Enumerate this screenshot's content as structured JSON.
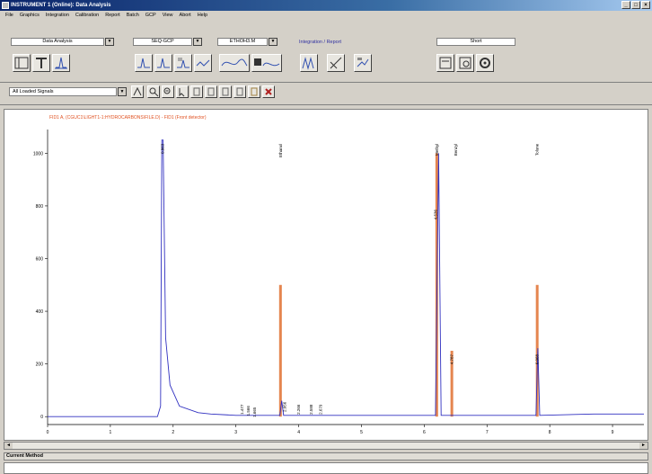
{
  "window": {
    "title": "INSTRUMENT 1 (Online): Data Analysis",
    "controls": [
      "_",
      "□",
      "×"
    ]
  },
  "menu": [
    "File",
    "Graphics",
    "Integration",
    "Calibration",
    "Report",
    "Batch",
    "GCP",
    "View",
    "Abort",
    "Help"
  ],
  "toolbar": {
    "view_select": "Data Analysis",
    "sequence_select": "SEQ-GCP",
    "method_select": "ETHOH3.M",
    "task_label": "Integration / Report",
    "print_select": "Short",
    "signal_select": "All Loaded Signals"
  },
  "chromatogram": {
    "header": "FID1 A, (CGUC1\\LIGHT1-1:HYDROCARBONS\\FILE.D) - FID1 (Front detector)",
    "peak_labels": [
      "0.863",
      "1.477",
      "1.566",
      "1.665",
      "2.056",
      "2.266",
      "2.588",
      "2.679",
      "4.536",
      "4.787",
      "6.068",
      "Ethanol",
      "Methyl",
      "Benzyl",
      "Tolune"
    ]
  },
  "chart_data": {
    "type": "line",
    "xlabel": "",
    "ylabel": "",
    "xlim": [
      0,
      9.5
    ],
    "ylim": [
      -30,
      1090
    ],
    "x_ticks": [
      0,
      1,
      2,
      3,
      4,
      5,
      6,
      7,
      8,
      9
    ],
    "y_ticks": [
      0,
      200,
      400,
      600,
      800,
      1000
    ],
    "y_tick_labels": [
      "0",
      "200",
      "400",
      "600",
      "800",
      "1000"
    ],
    "series": [
      {
        "name": "FID1",
        "color": "#3030c0",
        "x": [
          0,
          1.75,
          1.8,
          1.82,
          1.84,
          1.88,
          1.95,
          2.1,
          2.4,
          2.6,
          3.0,
          3.5,
          3.7,
          3.73,
          3.76,
          4.2,
          6.0,
          6.18,
          6.23,
          6.27,
          6.35,
          6.44,
          6.46,
          6.5,
          7.5,
          7.78,
          7.81,
          7.84,
          8.7,
          9.5
        ],
        "y": [
          0,
          0,
          40,
          1050,
          1050,
          300,
          120,
          40,
          15,
          10,
          5,
          5,
          5,
          60,
          5,
          5,
          5,
          5,
          1000,
          5,
          5,
          5,
          5,
          5,
          5,
          5,
          260,
          5,
          10,
          10
        ]
      }
    ],
    "highlight_peaks": [
      {
        "x": 3.71,
        "height": 500,
        "color": "#e07030"
      },
      {
        "x": 6.2,
        "height": 1000,
        "color": "#e07030"
      },
      {
        "x": 6.44,
        "height": 250,
        "color": "#e07030"
      },
      {
        "x": 7.8,
        "height": 500,
        "color": "#e07030"
      }
    ]
  },
  "bottom_panel": {
    "title": "Current Method"
  },
  "colors": {
    "trace": "#3030c0",
    "integration": "#e07030",
    "header_text": "#e05020"
  }
}
